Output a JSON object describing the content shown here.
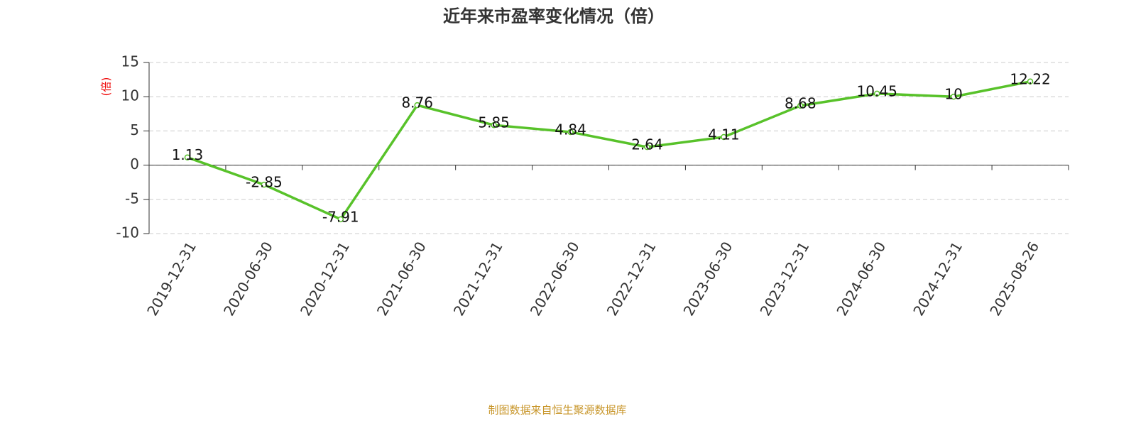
{
  "chart_data": {
    "type": "line",
    "title": "近年来市盈率变化情况（倍）",
    "y_label": "(倍)",
    "categories": [
      "2019-12-31",
      "2020-06-30",
      "2020-12-31",
      "2021-06-30",
      "2021-12-31",
      "2022-06-30",
      "2022-12-31",
      "2023-06-30",
      "2023-12-31",
      "2024-06-30",
      "2024-12-31",
      "2025-08-26"
    ],
    "series": [
      {
        "name": "市盈率",
        "color": "#58c22a",
        "values": [
          1.13,
          -2.85,
          -7.91,
          8.76,
          5.85,
          4.84,
          2.64,
          4.11,
          8.68,
          10.45,
          10,
          12.22
        ]
      }
    ],
    "ylim": [
      -10,
      15
    ],
    "yticks": [
      -10,
      -5,
      0,
      5,
      10,
      15
    ],
    "grid": true,
    "source": "制图数据来自恒生聚源数据库"
  }
}
